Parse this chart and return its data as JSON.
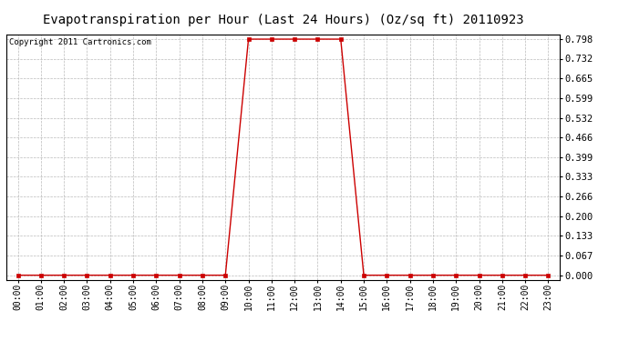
{
  "title": "Evapotranspiration per Hour (Last 24 Hours) (Oz/sq ft) 20110923",
  "copyright_text": "Copyright 2011 Cartronics.com",
  "x_labels": [
    "00:00",
    "01:00",
    "02:00",
    "03:00",
    "04:00",
    "05:00",
    "06:00",
    "07:00",
    "08:00",
    "09:00",
    "10:00",
    "11:00",
    "12:00",
    "13:00",
    "14:00",
    "15:00",
    "16:00",
    "17:00",
    "18:00",
    "19:00",
    "20:00",
    "21:00",
    "22:00",
    "23:00"
  ],
  "y_values": [
    0.0,
    0.0,
    0.0,
    0.0,
    0.0,
    0.0,
    0.0,
    0.0,
    0.0,
    0.0,
    0.798,
    0.798,
    0.798,
    0.798,
    0.798,
    0.0,
    0.0,
    0.0,
    0.0,
    0.0,
    0.0,
    0.0,
    0.0,
    0.0
  ],
  "y_ticks": [
    0.0,
    0.067,
    0.133,
    0.2,
    0.266,
    0.333,
    0.399,
    0.466,
    0.532,
    0.599,
    0.665,
    0.732,
    0.798
  ],
  "y_min": -0.015,
  "y_max": 0.815,
  "line_color": "#cc0000",
  "marker_color": "#cc0000",
  "bg_color": "#ffffff",
  "grid_color": "#bbbbbb",
  "title_fontsize": 10,
  "copyright_fontsize": 6.5,
  "tick_fontsize": 7,
  "ytick_fontsize": 7.5
}
